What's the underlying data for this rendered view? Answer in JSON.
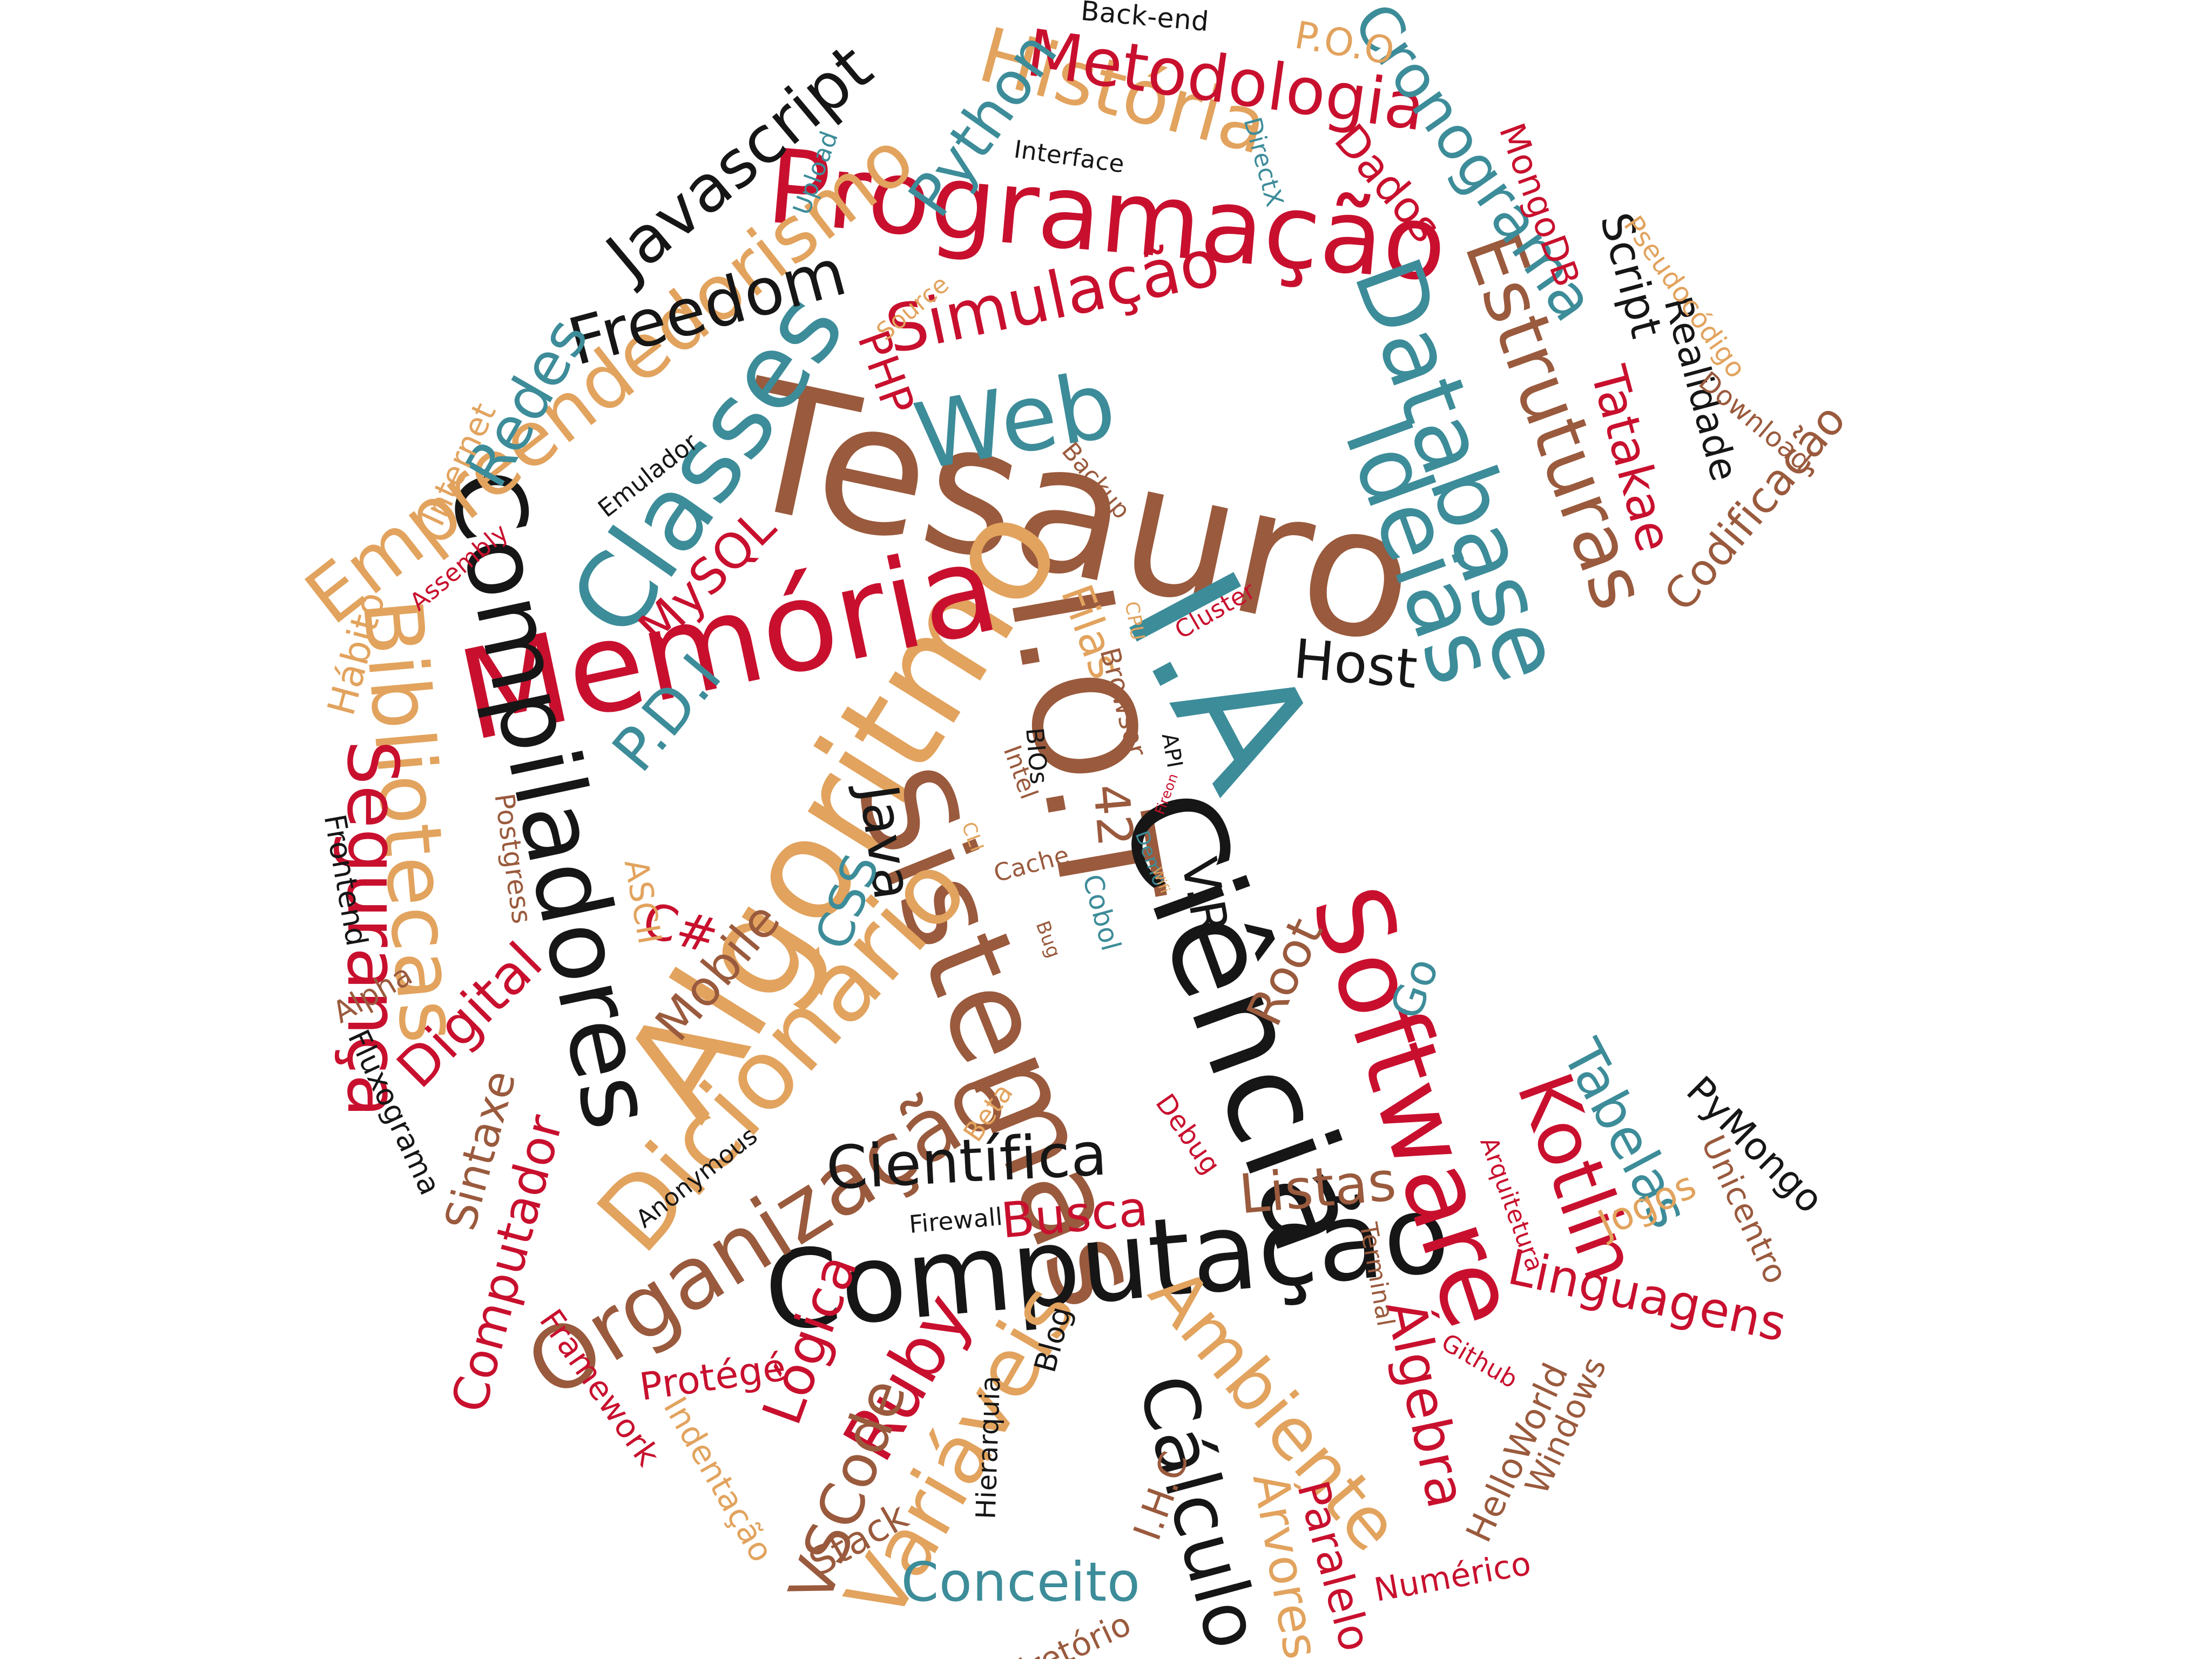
{
  "palette": {
    "red": "#c8102e",
    "teal": "#3d8c99",
    "tan": "#e2a35e",
    "brown": "#9a5a3d",
    "black": "#161616"
  },
  "words": [
    {
      "text": "Tesauro",
      "color": "brown"
    },
    {
      "text": "Algoritmo",
      "color": "tan"
    },
    {
      "text": "I.O.T",
      "color": "brown"
    },
    {
      "text": "I.A",
      "color": "teal"
    },
    {
      "text": "Memória",
      "color": "red"
    },
    {
      "text": "Ciência",
      "color": "black"
    },
    {
      "text": "Sistemas",
      "color": "brown"
    },
    {
      "text": "Computação",
      "color": "black"
    },
    {
      "text": "Programação",
      "color": "red"
    },
    {
      "text": "Classes",
      "color": "teal"
    },
    {
      "text": "Compiladores",
      "color": "black"
    },
    {
      "text": "Software",
      "color": "red"
    },
    {
      "text": "Database",
      "color": "teal"
    },
    {
      "text": "Ideias",
      "color": "teal"
    },
    {
      "text": "Dicionário",
      "color": "tan"
    },
    {
      "text": "Organização",
      "color": "brown"
    },
    {
      "text": "Bibliotecas",
      "color": "tan"
    },
    {
      "text": "Empreendedorismo",
      "color": "tan"
    },
    {
      "text": "Estruturas",
      "color": "brown"
    },
    {
      "text": "Web",
      "color": "teal"
    },
    {
      "text": "Variáveis",
      "color": "tan"
    },
    {
      "text": "Cálculo",
      "color": "black"
    },
    {
      "text": "Ambiente",
      "color": "tan"
    },
    {
      "text": "Segurança",
      "color": "red"
    },
    {
      "text": "Kotlin",
      "color": "red"
    },
    {
      "text": "Ruby",
      "color": "red"
    },
    {
      "text": "História",
      "color": "tan"
    },
    {
      "text": "Metodologia",
      "color": "red"
    },
    {
      "text": "Simulação",
      "color": "red"
    },
    {
      "text": "Freedom",
      "color": "black"
    },
    {
      "text": "Javascript",
      "color": "black"
    },
    {
      "text": "Python",
      "color": "teal"
    },
    {
      "text": "Cronograma",
      "color": "teal"
    },
    {
      "text": "Redes",
      "color": "teal"
    },
    {
      "text": "Científica",
      "color": "black"
    },
    {
      "text": "Lógica",
      "color": "red"
    },
    {
      "text": "Listas",
      "color": "brown"
    },
    {
      "text": "Busca",
      "color": "red"
    },
    {
      "text": "VSCode",
      "color": "brown"
    },
    {
      "text": "Conceito",
      "color": "teal"
    },
    {
      "text": "Tabelas",
      "color": "teal"
    },
    {
      "text": "Linguagens",
      "color": "red"
    },
    {
      "text": "Álgebra",
      "color": "red"
    },
    {
      "text": "Árvores",
      "color": "tan"
    },
    {
      "text": "Paralelo",
      "color": "red"
    },
    {
      "text": "Computador",
      "color": "red"
    },
    {
      "text": "Digital",
      "color": "red"
    },
    {
      "text": "Sintaxe",
      "color": "brown"
    },
    {
      "text": "Mobile",
      "color": "brown"
    },
    {
      "text": "Java",
      "color": "black"
    },
    {
      "text": "CSS",
      "color": "teal"
    },
    {
      "text": "P.D.I",
      "color": "teal"
    },
    {
      "text": "MySQL",
      "color": "red"
    },
    {
      "text": "PHP",
      "color": "red"
    },
    {
      "text": "Host",
      "color": "black"
    },
    {
      "text": "Filas",
      "color": "tan"
    },
    {
      "text": "Root",
      "color": "brown"
    },
    {
      "text": "V.R",
      "color": "black"
    },
    {
      "text": "Go",
      "color": "teal"
    },
    {
      "text": "C#",
      "color": "red"
    },
    {
      "text": "42",
      "color": "brown"
    },
    {
      "text": "Tatakae",
      "color": "red"
    },
    {
      "text": "Codificação",
      "color": "brown"
    },
    {
      "text": "Realidade",
      "color": "black"
    },
    {
      "text": "Script",
      "color": "black"
    },
    {
      "text": "MongoDB",
      "color": "red"
    },
    {
      "text": "Dados",
      "color": "red"
    },
    {
      "text": "P.O.O",
      "color": "tan"
    },
    {
      "text": "Back-end",
      "color": "black"
    },
    {
      "text": "Interface",
      "color": "black"
    },
    {
      "text": "DirectX",
      "color": "teal"
    },
    {
      "text": "Upload",
      "color": "teal"
    },
    {
      "text": "Source",
      "color": "tan"
    },
    {
      "text": "Internet",
      "color": "tan"
    },
    {
      "text": "Emulador",
      "color": "black"
    },
    {
      "text": "Assembly",
      "color": "red"
    },
    {
      "text": "Hábito",
      "color": "tan"
    },
    {
      "text": "Frontend",
      "color": "black"
    },
    {
      "text": "Postgress",
      "color": "brown"
    },
    {
      "text": "ASCII",
      "color": "tan"
    },
    {
      "text": "Alpha",
      "color": "brown"
    },
    {
      "text": "Fluxograma",
      "color": "black"
    },
    {
      "text": "Framework",
      "color": "red"
    },
    {
      "text": "Indentação",
      "color": "tan"
    },
    {
      "text": "Protégé",
      "color": "red"
    },
    {
      "text": "Stack",
      "color": "brown"
    },
    {
      "text": "Diretório",
      "color": "brown"
    },
    {
      "text": "Numérico",
      "color": "red"
    },
    {
      "text": "I.H.C",
      "color": "brown"
    },
    {
      "text": "Hierarquia",
      "color": "black"
    },
    {
      "text": "Blog",
      "color": "black"
    },
    {
      "text": "Github",
      "color": "red"
    },
    {
      "text": "Terminal",
      "color": "brown"
    },
    {
      "text": "Arquitetura",
      "color": "red"
    },
    {
      "text": "HelloWorld",
      "color": "brown"
    },
    {
      "text": "Windows",
      "color": "brown"
    },
    {
      "text": "Jogos",
      "color": "tan"
    },
    {
      "text": "Unicentro",
      "color": "brown"
    },
    {
      "text": "PyMongo",
      "color": "black"
    },
    {
      "text": "Firewall",
      "color": "black"
    },
    {
      "text": "Anonymous",
      "color": "black"
    },
    {
      "text": "Beta",
      "color": "tan"
    },
    {
      "text": "Debug",
      "color": "red"
    },
    {
      "text": "Cobol",
      "color": "teal"
    },
    {
      "text": "Bug",
      "color": "brown"
    },
    {
      "text": "Demo",
      "color": "teal"
    },
    {
      "text": "Cache",
      "color": "brown"
    },
    {
      "text": "Intel",
      "color": "brown"
    },
    {
      "text": "BIOs",
      "color": "black"
    },
    {
      "text": "CLI",
      "color": "tan"
    },
    {
      "text": "API",
      "color": "black"
    },
    {
      "text": "Browser",
      "color": "brown"
    },
    {
      "text": "Cluster",
      "color": "red"
    },
    {
      "text": "CPU",
      "color": "tan"
    },
    {
      "text": "Backup",
      "color": "brown"
    },
    {
      "text": "Download",
      "color": "brown"
    },
    {
      "text": "Pseudocódigo",
      "color": "tan"
    },
    {
      "text": "Fireon",
      "color": "red"
    },
    {
      "text": "Wifi",
      "color": "tan"
    }
  ]
}
